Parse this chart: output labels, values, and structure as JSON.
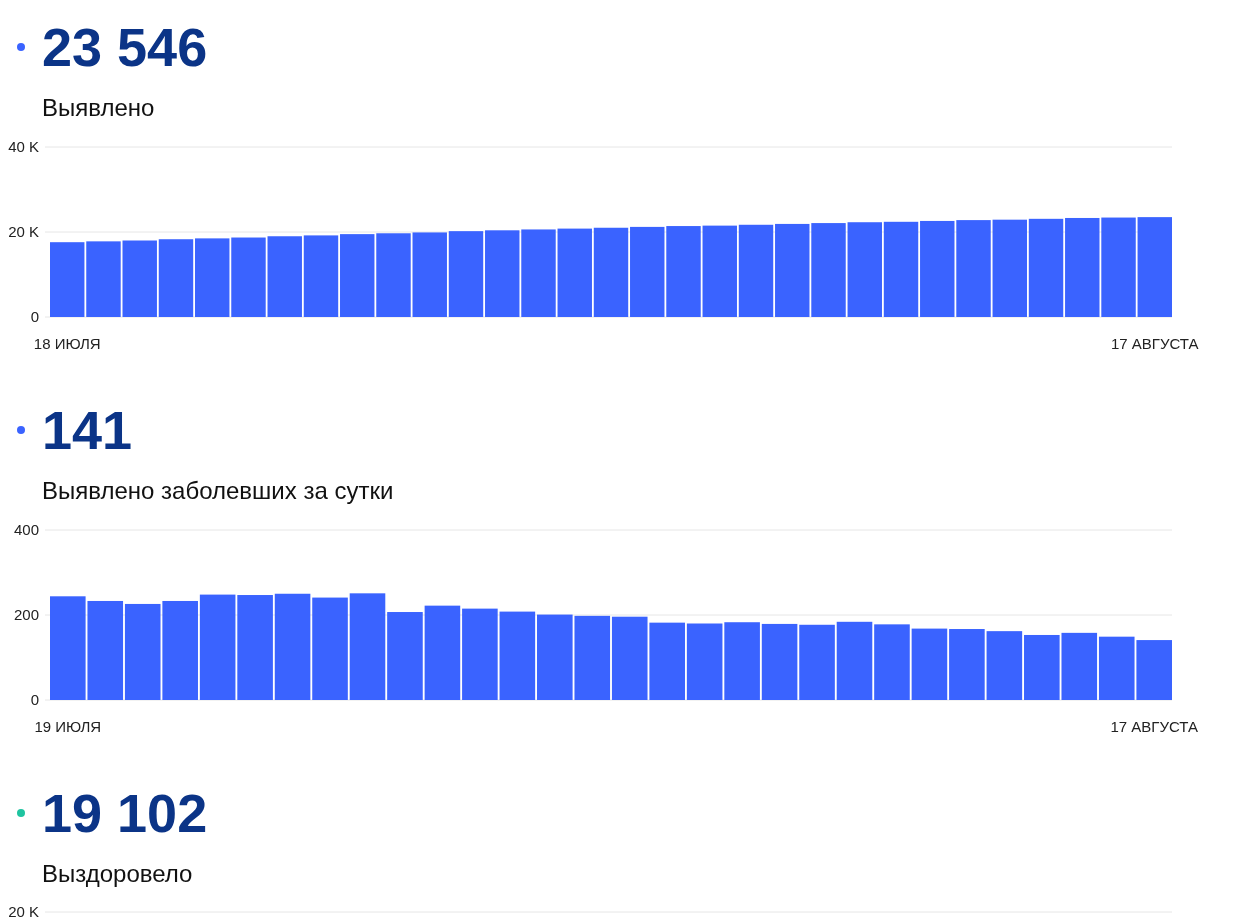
{
  "chart_data": [
    {
      "type": "bar",
      "title": "23 546",
      "subtitle": "Выявлено",
      "color": "#3a63ff",
      "categories": [
        "18 ИЮЛЯ",
        null,
        null,
        null,
        null,
        null,
        null,
        null,
        null,
        null,
        null,
        null,
        null,
        null,
        null,
        null,
        null,
        null,
        null,
        null,
        null,
        null,
        null,
        null,
        null,
        null,
        null,
        null,
        null,
        null,
        "17 АВГУСТА"
      ],
      "values": [
        17600,
        17800,
        18000,
        18300,
        18500,
        18700,
        19000,
        19200,
        19500,
        19700,
        19900,
        20200,
        20400,
        20600,
        20800,
        21000,
        21200,
        21400,
        21500,
        21700,
        21900,
        22100,
        22300,
        22400,
        22600,
        22800,
        22900,
        23100,
        23300,
        23400,
        23500
      ],
      "ylim": [
        0,
        40000
      ],
      "yticks": [
        0,
        {
          "value": 20000,
          "label": "20 K"
        },
        {
          "value": 40000,
          "label": "40 K"
        }
      ],
      "grid": "y"
    },
    {
      "type": "bar",
      "title": "141",
      "subtitle": "Выявлено заболевших за сутки",
      "color": "#3a63ff",
      "categories": [
        "19 ИЮЛЯ",
        null,
        null,
        null,
        null,
        null,
        null,
        null,
        null,
        null,
        null,
        null,
        null,
        null,
        null,
        null,
        null,
        null,
        null,
        null,
        null,
        null,
        null,
        null,
        null,
        null,
        null,
        null,
        null,
        "17 АВГУСТА"
      ],
      "values": [
        244,
        233,
        226,
        233,
        248,
        247,
        250,
        241,
        251,
        207,
        222,
        215,
        208,
        201,
        198,
        196,
        182,
        180,
        183,
        179,
        177,
        184,
        178,
        168,
        167,
        162,
        153,
        158,
        149,
        141
      ],
      "ylim": [
        0,
        400
      ],
      "yticks": [
        0,
        200,
        400
      ],
      "grid": "y"
    },
    {
      "type": "other",
      "title": "19 102",
      "subtitle": "Выздоровело",
      "annotations": [
        "20 K"
      ]
    }
  ]
}
